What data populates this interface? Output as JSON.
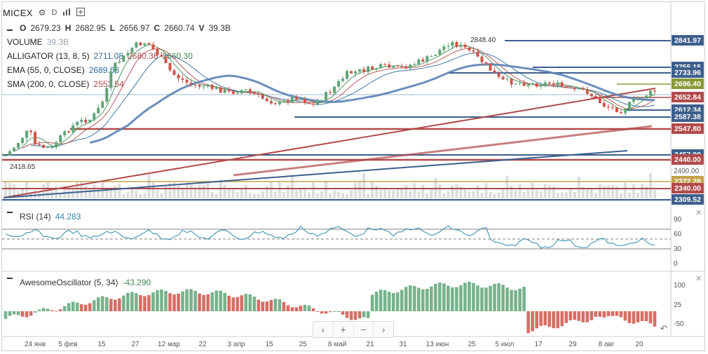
{
  "header": {
    "symbol": "MICEX",
    "settings_icon": "gear-icon",
    "interval": "D",
    "compare_icon": "bars-icon",
    "add_icon": "plus-square-icon"
  },
  "ohlc": {
    "o_label": "O",
    "o": "2679.23",
    "h_label": "H",
    "h": "2682.95",
    "l_label": "L",
    "l": "2656.97",
    "c_label": "C",
    "c": "2660.74",
    "v_label": "V",
    "v": "39.3B"
  },
  "indicators": {
    "volume": {
      "label": "VOLUME",
      "value": "39.3B"
    },
    "alligator": {
      "label": "ALLIGATOR (13, 8, 5)",
      "jaw": "2711.08",
      "teeth": "2680.38",
      "lips": "2660.30"
    },
    "ema": {
      "label": "EMA (55, 0, CLOSE)",
      "value": "2689.68"
    },
    "sma": {
      "label": "SMA (200, 0, CLOSE)",
      "value": "2553.54"
    },
    "rsi": {
      "label": "RSI (14)",
      "value": "44.283"
    },
    "ao": {
      "label": "AwesomeOscillator (5, 34)",
      "value": "-43.290"
    }
  },
  "price_axis": {
    "labels": [
      {
        "text": "2841.97",
        "kind": "box",
        "color": "#3d5f8c"
      },
      {
        "text": "2755.15",
        "kind": "box",
        "color": "#3d5f8c"
      },
      {
        "text": "2733.96",
        "kind": "box",
        "color": "#3d5f8c"
      },
      {
        "text": "2696.40",
        "kind": "box",
        "color": "#8a9a3a"
      },
      {
        "text": "2652.84",
        "kind": "box",
        "color": "#b24a4a"
      },
      {
        "text": "2612.34",
        "kind": "box",
        "color": "#3d5f8c"
      },
      {
        "text": "2587.38",
        "kind": "box",
        "color": "#3d5f8c"
      },
      {
        "text": "2547.80",
        "kind": "box",
        "color": "#b24a4a"
      },
      {
        "text": "2457.99",
        "kind": "box",
        "color": "#3d5f8c"
      },
      {
        "text": "2440.00",
        "kind": "box",
        "color": "#b24a4a"
      },
      {
        "text": "2400.00",
        "kind": "plain",
        "color": "#555"
      },
      {
        "text": "2372.28",
        "kind": "box",
        "color": "#c2a24a"
      },
      {
        "text": "2340.00",
        "kind": "box",
        "color": "#b24a4a"
      },
      {
        "text": "2309.52",
        "kind": "box",
        "color": "#3d5f8c"
      }
    ],
    "high_note": "2848.40",
    "low_note": "2418.65"
  },
  "rsi_axis": [
    "90",
    "60",
    "30",
    "0"
  ],
  "ao_axis": [
    "100",
    "25",
    "-50"
  ],
  "time_axis": [
    "24 янв",
    "5 фев",
    "15",
    "27",
    "12 мар",
    "22",
    "3 апр",
    "15",
    "25",
    "8 май",
    "21",
    "31",
    "13 июн",
    "25",
    "5 июл",
    "17",
    "29",
    "8 авг",
    "20"
  ],
  "colors": {
    "up": "#5fa577",
    "down": "#d0534a",
    "blue": "#3d5f8c",
    "red": "#b24a4a",
    "accent": "#2c6aa0"
  },
  "nav": {
    "back": "‹",
    "zoom_in": "+",
    "zoom_out": "−",
    "forward": "›",
    "reset_icon": "undo-icon"
  }
}
